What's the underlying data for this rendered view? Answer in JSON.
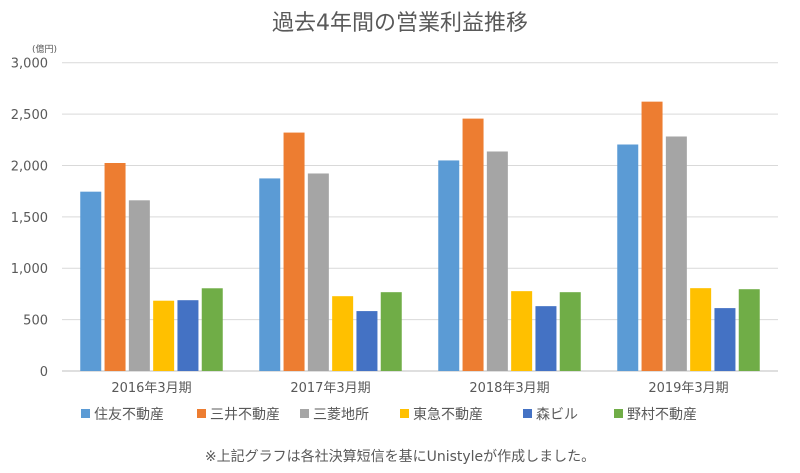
{
  "chart_data": {
    "type": "bar",
    "title": "過去4年間の営業利益推移",
    "unit_label": "(億円)",
    "categories": [
      "2016年3月期",
      "2017年3月期",
      "2018年3月期",
      "2019年3月期"
    ],
    "ylim": [
      0,
      3000
    ],
    "yticks": [
      0,
      500,
      1000,
      1500,
      2000,
      2500,
      3000
    ],
    "ytick_labels": [
      "0",
      "500",
      "1,000",
      "1,500",
      "2,000",
      "2,500",
      "3,000"
    ],
    "grid": true,
    "legend_position": "bottom",
    "series": [
      {
        "name": "住友不動産",
        "color": "#5B9BD5",
        "values": [
          1745,
          1874,
          2049,
          2204
        ]
      },
      {
        "name": "三井不動産",
        "color": "#ED7D31",
        "values": [
          2024,
          2320,
          2456,
          2621
        ]
      },
      {
        "name": "三菱地所",
        "color": "#A5A5A5",
        "values": [
          1661,
          1922,
          2136,
          2282
        ]
      },
      {
        "name": "東急不動産",
        "color": "#FFC000",
        "values": [
          684,
          728,
          777,
          806
        ]
      },
      {
        "name": "森ビル",
        "color": "#4472C4",
        "values": [
          689,
          583,
          631,
          612
        ]
      },
      {
        "name": "野村不動産",
        "color": "#70AD47",
        "values": [
          805,
          767,
          767,
          796
        ]
      }
    ],
    "footnote": "※上記グラフは各社決算短信を基にUnistyleが作成しました。"
  }
}
